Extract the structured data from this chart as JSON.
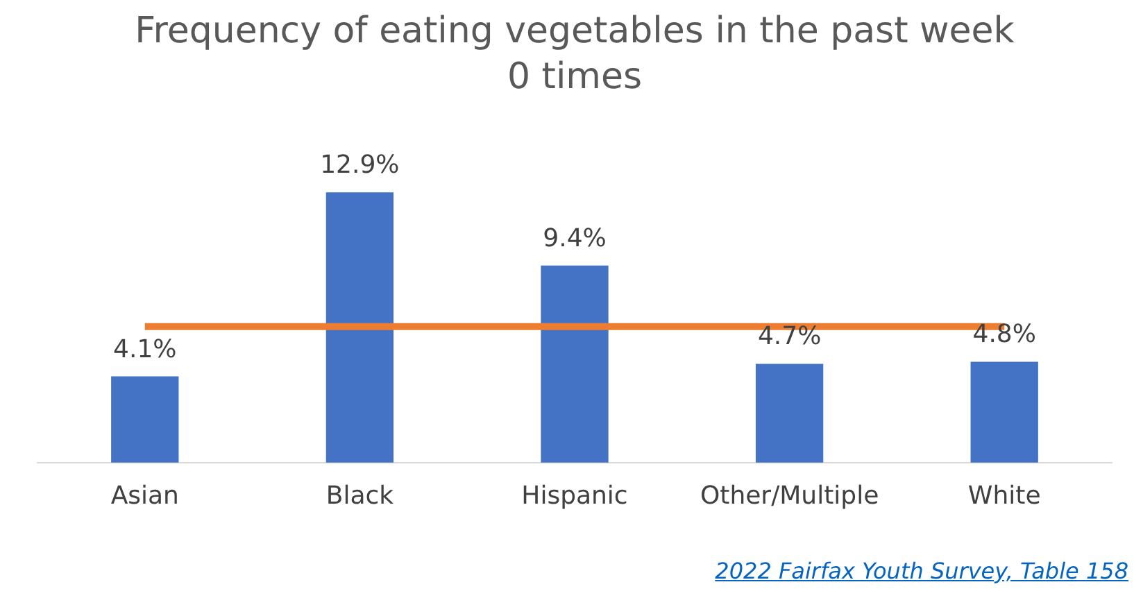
{
  "chart_data": {
    "type": "bar",
    "title": "Frequency of eating vegetables in the past week",
    "subtitle": "0 times",
    "categories": [
      "Asian",
      "Black",
      "Hispanic",
      "Other/Multiple",
      "White"
    ],
    "series": [
      {
        "color": "#4472c4",
        "values": [
          4.1,
          12.9,
          9.4,
          4.7,
          4.8
        ],
        "value_labels": [
          "4.1%",
          "12.9%",
          "9.4%",
          "4.7%",
          "4.8%"
        ]
      },
      {
        "type": "line",
        "color": "#ed7d31",
        "values": [
          6.5,
          6.5,
          6.5,
          6.5,
          6.5
        ],
        "marker": "none"
      }
    ],
    "annotations": [
      "2022 Fairfax Youth Survey, Table 158"
    ],
    "grid": false,
    "legend": false
  }
}
